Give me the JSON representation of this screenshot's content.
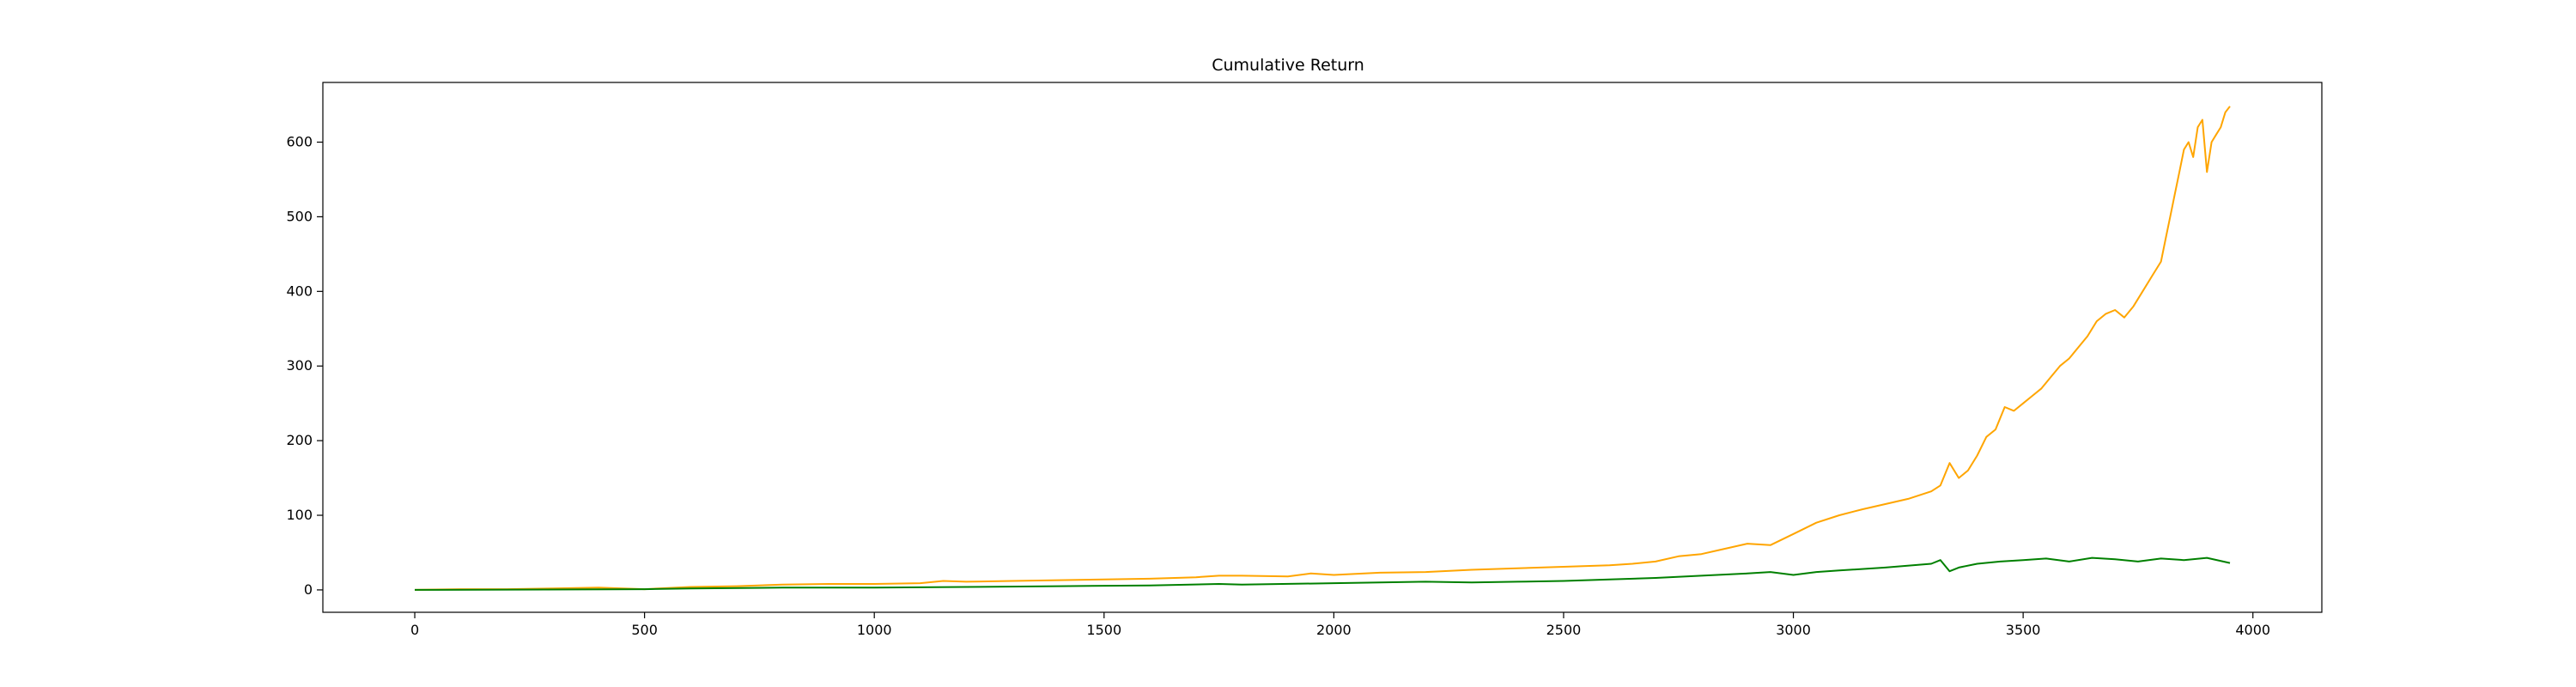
{
  "chart_data": {
    "type": "line",
    "title": "Cumulative Return",
    "xlabel": "",
    "ylabel": "",
    "xlim": [
      -200,
      4150
    ],
    "ylim": [
      -30,
      680
    ],
    "xticks": [
      0,
      500,
      1000,
      1500,
      2000,
      2500,
      3000,
      3500,
      4000
    ],
    "yticks": [
      0,
      100,
      200,
      300,
      400,
      500,
      600
    ],
    "grid": false,
    "legend": "none",
    "series": [
      {
        "color": "#ffa500",
        "x": [
          0,
          100,
          200,
          300,
          400,
          500,
          600,
          700,
          800,
          900,
          1000,
          1100,
          1150,
          1200,
          1300,
          1400,
          1500,
          1600,
          1700,
          1750,
          1800,
          1900,
          1950,
          2000,
          2100,
          2200,
          2300,
          2400,
          2500,
          2600,
          2650,
          2700,
          2750,
          2800,
          2850,
          2900,
          2950,
          3000,
          3050,
          3100,
          3150,
          3200,
          3250,
          3300,
          3320,
          3340,
          3360,
          3380,
          3400,
          3420,
          3440,
          3460,
          3480,
          3500,
          3520,
          3540,
          3560,
          3580,
          3600,
          3620,
          3640,
          3660,
          3680,
          3700,
          3720,
          3740,
          3760,
          3780,
          3800,
          3810,
          3820,
          3830,
          3840,
          3850,
          3860,
          3870,
          3880,
          3890,
          3900,
          3910,
          3920,
          3930,
          3940,
          3950
        ],
        "y": [
          0,
          1,
          1,
          2,
          3,
          1,
          4,
          5,
          7,
          8,
          8,
          9,
          12,
          11,
          12,
          13,
          14,
          15,
          17,
          19,
          19,
          18,
          22,
          20,
          23,
          24,
          27,
          29,
          31,
          33,
          35,
          38,
          45,
          48,
          55,
          62,
          60,
          75,
          90,
          100,
          108,
          115,
          122,
          132,
          140,
          170,
          150,
          160,
          180,
          205,
          215,
          245,
          240,
          250,
          260,
          270,
          285,
          300,
          310,
          325,
          340,
          360,
          370,
          375,
          365,
          380,
          400,
          420,
          440,
          470,
          500,
          530,
          560,
          590,
          600,
          580,
          620,
          630,
          560,
          600,
          610,
          620,
          640,
          648
        ]
      },
      {
        "color": "#008000",
        "x": [
          0,
          500,
          600,
          800,
          1000,
          1200,
          1400,
          1600,
          1750,
          1800,
          2000,
          2100,
          2200,
          2300,
          2400,
          2500,
          2600,
          2700,
          2800,
          2900,
          2950,
          3000,
          3050,
          3100,
          3200,
          3300,
          3320,
          3340,
          3360,
          3400,
          3450,
          3500,
          3550,
          3600,
          3650,
          3700,
          3750,
          3800,
          3850,
          3900,
          3950
        ],
        "y": [
          0,
          1,
          2,
          3,
          3,
          4,
          5,
          6,
          8,
          7,
          9,
          10,
          11,
          10,
          11,
          12,
          14,
          16,
          19,
          22,
          24,
          20,
          24,
          26,
          30,
          35,
          40,
          25,
          30,
          35,
          38,
          40,
          42,
          38,
          43,
          41,
          38,
          42,
          40,
          43,
          36
        ]
      }
    ]
  }
}
